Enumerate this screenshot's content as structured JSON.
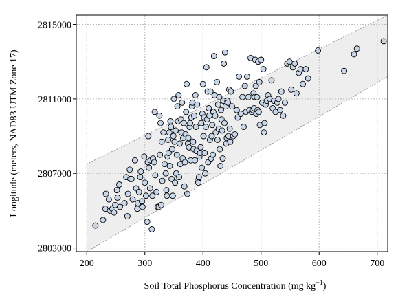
{
  "chart_data": {
    "type": "scatter",
    "title": "",
    "xlabel": "Soil Total Phosphorus Concentration (mg kg",
    "xlabel_superscript": "−1",
    "xlabel_suffix": ")",
    "ylabel": "Longitude (meters, NAD83 UTM Zone 17)",
    "xlim": [
      182,
      718
    ],
    "ylim": [
      2802800,
      2815500
    ],
    "xticks": [
      200,
      300,
      400,
      500,
      600,
      700
    ],
    "yticks": [
      2803000,
      2807000,
      2811000,
      2815000
    ],
    "grid": true,
    "band": {
      "lower": [
        [
          200,
          2802800
        ],
        [
          718,
          2812200
        ]
      ],
      "upper": [
        [
          200,
          2807500
        ],
        [
          718,
          2815500
        ]
      ]
    },
    "colors": {
      "point_fill": "#c8d6e8",
      "point_stroke": "#000000",
      "band_fill": "#eeeeee",
      "band_stroke": "#999999",
      "grid": "#bbbbbb"
    },
    "points": [
      [
        215,
        2804200
      ],
      [
        228,
        2804500
      ],
      [
        232,
        2805100
      ],
      [
        233,
        2805900
      ],
      [
        238,
        2805600
      ],
      [
        240,
        2805000
      ],
      [
        244,
        2805100
      ],
      [
        247,
        2804900
      ],
      [
        249,
        2805300
      ],
      [
        252,
        2806100
      ],
      [
        253,
        2805700
      ],
      [
        256,
        2806400
      ],
      [
        257,
        2805200
      ],
      [
        265,
        2805400
      ],
      [
        268,
        2806800
      ],
      [
        270,
        2804700
      ],
      [
        271,
        2805900
      ],
      [
        274,
        2807200
      ],
      [
        275,
        2806700
      ],
      [
        277,
        2806700
      ],
      [
        279,
        2805600
      ],
      [
        283,
        2807700
      ],
      [
        285,
        2806200
      ],
      [
        287,
        2805100
      ],
      [
        288,
        2805400
      ],
      [
        290,
        2806000
      ],
      [
        292,
        2806800
      ],
      [
        293,
        2807100
      ],
      [
        295,
        2805500
      ],
      [
        296,
        2805200
      ],
      [
        299,
        2807900
      ],
      [
        300,
        2806500
      ],
      [
        302,
        2805800
      ],
      [
        304,
        2804400
      ],
      [
        305,
        2807600
      ],
      [
        306,
        2809000
      ],
      [
        307,
        2807300
      ],
      [
        309,
        2806200
      ],
      [
        310,
        2807700
      ],
      [
        312,
        2804000
      ],
      [
        313,
        2805800
      ],
      [
        314,
        2807800
      ],
      [
        316,
        2807600
      ],
      [
        317,
        2810300
      ],
      [
        318,
        2806900
      ],
      [
        320,
        2806000
      ],
      [
        322,
        2805200
      ],
      [
        324,
        2805200
      ],
      [
        325,
        2810100
      ],
      [
        326,
        2808000
      ],
      [
        327,
        2809700
      ],
      [
        328,
        2805300
      ],
      [
        329,
        2808700
      ],
      [
        330,
        2806600
      ],
      [
        332,
        2809200
      ],
      [
        334,
        2807500
      ],
      [
        336,
        2807000
      ],
      [
        337,
        2806100
      ],
      [
        338,
        2805800
      ],
      [
        339,
        2807900
      ],
      [
        340,
        2808800
      ],
      [
        341,
        2808100
      ],
      [
        342,
        2809200
      ],
      [
        343,
        2807400
      ],
      [
        344,
        2809800
      ],
      [
        345,
        2809500
      ],
      [
        346,
        2806700
      ],
      [
        347,
        2808300
      ],
      [
        348,
        2805800
      ],
      [
        349,
        2809000
      ],
      [
        350,
        2811000
      ],
      [
        351,
        2808700
      ],
      [
        352,
        2806500
      ],
      [
        353,
        2809300
      ],
      [
        354,
        2807000
      ],
      [
        355,
        2808000
      ],
      [
        356,
        2810600
      ],
      [
        357,
        2809800
      ],
      [
        358,
        2811200
      ],
      [
        359,
        2806800
      ],
      [
        360,
        2808600
      ],
      [
        361,
        2807500
      ],
      [
        362,
        2809900
      ],
      [
        363,
        2809200
      ],
      [
        364,
        2810800
      ],
      [
        365,
        2807800
      ],
      [
        366,
        2808900
      ],
      [
        367,
        2809700
      ],
      [
        368,
        2806300
      ],
      [
        369,
        2807600
      ],
      [
        370,
        2809100
      ],
      [
        371,
        2810300
      ],
      [
        372,
        2811800
      ],
      [
        373,
        2805900
      ],
      [
        374,
        2808600
      ],
      [
        375,
        2808900
      ],
      [
        376,
        2808400
      ],
      [
        377,
        2809500
      ],
      [
        378,
        2809700
      ],
      [
        379,
        2807700
      ],
      [
        380,
        2810000
      ],
      [
        381,
        2810600
      ],
      [
        382,
        2810800
      ],
      [
        383,
        2808700
      ],
      [
        384,
        2808300
      ],
      [
        385,
        2810100
      ],
      [
        386,
        2807700
      ],
      [
        387,
        2811200
      ],
      [
        388,
        2809500
      ],
      [
        389,
        2808200
      ],
      [
        390,
        2810700
      ],
      [
        391,
        2806600
      ],
      [
        392,
        2806500
      ],
      [
        393,
        2806800
      ],
      [
        394,
        2807900
      ],
      [
        395,
        2808100
      ],
      [
        396,
        2808400
      ],
      [
        397,
        2809700
      ],
      [
        398,
        2807300
      ],
      [
        399,
        2810200
      ],
      [
        400,
        2811800
      ],
      [
        401,
        2809000
      ],
      [
        402,
        2810000
      ],
      [
        403,
        2808100
      ],
      [
        404,
        2807000
      ],
      [
        405,
        2809500
      ],
      [
        406,
        2812700
      ],
      [
        407,
        2809900
      ],
      [
        408,
        2811400
      ],
      [
        409,
        2807600
      ],
      [
        410,
        2810500
      ],
      [
        411,
        2810100
      ],
      [
        412,
        2808800
      ],
      [
        413,
        2811400
      ],
      [
        414,
        2807800
      ],
      [
        415,
        2809000
      ],
      [
        416,
        2809600
      ],
      [
        417,
        2808000
      ],
      [
        418,
        2810300
      ],
      [
        419,
        2813300
      ],
      [
        420,
        2811200
      ],
      [
        421,
        2810100
      ],
      [
        422,
        2809200
      ],
      [
        424,
        2811900
      ],
      [
        425,
        2808800
      ],
      [
        426,
        2810700
      ],
      [
        427,
        2809400
      ],
      [
        428,
        2811100
      ],
      [
        429,
        2808300
      ],
      [
        430,
        2807400
      ],
      [
        431,
        2810400
      ],
      [
        432,
        2809900
      ],
      [
        433,
        2809300
      ],
      [
        434,
        2807800
      ],
      [
        435,
        2810900
      ],
      [
        436,
        2812900
      ],
      [
        437,
        2809700
      ],
      [
        438,
        2813500
      ],
      [
        439,
        2810600
      ],
      [
        440,
        2808600
      ],
      [
        441,
        2808900
      ],
      [
        442,
        2810900
      ],
      [
        443,
        2810800
      ],
      [
        444,
        2809000
      ],
      [
        445,
        2811500
      ],
      [
        446,
        2809400
      ],
      [
        447,
        2808700
      ],
      [
        448,
        2811400
      ],
      [
        450,
        2810600
      ],
      [
        452,
        2809000
      ],
      [
        455,
        2809100
      ],
      [
        458,
        2810400
      ],
      [
        460,
        2810000
      ],
      [
        462,
        2812200
      ],
      [
        465,
        2810200
      ],
      [
        468,
        2811100
      ],
      [
        470,
        2809500
      ],
      [
        472,
        2811700
      ],
      [
        474,
        2810300
      ],
      [
        476,
        2812200
      ],
      [
        478,
        2811100
      ],
      [
        480,
        2810400
      ],
      [
        482,
        2813200
      ],
      [
        484,
        2810300
      ],
      [
        486,
        2810400
      ],
      [
        487,
        2811300
      ],
      [
        488,
        2810500
      ],
      [
        489,
        2811100
      ],
      [
        490,
        2813100
      ],
      [
        491,
        2811700
      ],
      [
        492,
        2810200
      ],
      [
        493,
        2811100
      ],
      [
        494,
        2810400
      ],
      [
        495,
        2813000
      ],
      [
        496,
        2810300
      ],
      [
        497,
        2811900
      ],
      [
        498,
        2809600
      ],
      [
        500,
        2813100
      ],
      [
        502,
        2810800
      ],
      [
        504,
        2812600
      ],
      [
        505,
        2809200
      ],
      [
        506,
        2809700
      ],
      [
        508,
        2810700
      ],
      [
        510,
        2810900
      ],
      [
        512,
        2811200
      ],
      [
        515,
        2811000
      ],
      [
        518,
        2812000
      ],
      [
        520,
        2810500
      ],
      [
        522,
        2810900
      ],
      [
        525,
        2810300
      ],
      [
        528,
        2810800
      ],
      [
        530,
        2811000
      ],
      [
        533,
        2810400
      ],
      [
        535,
        2811400
      ],
      [
        538,
        2810100
      ],
      [
        541,
        2810800
      ],
      [
        545,
        2812900
      ],
      [
        549,
        2813000
      ],
      [
        552,
        2811500
      ],
      [
        555,
        2812700
      ],
      [
        558,
        2812900
      ],
      [
        561,
        2811300
      ],
      [
        565,
        2812400
      ],
      [
        568,
        2812600
      ],
      [
        572,
        2811800
      ],
      [
        577,
        2812600
      ],
      [
        581,
        2812100
      ],
      [
        598,
        2813600
      ],
      [
        643,
        2812500
      ],
      [
        660,
        2813400
      ],
      [
        665,
        2813700
      ],
      [
        711,
        2814100
      ]
    ]
  }
}
